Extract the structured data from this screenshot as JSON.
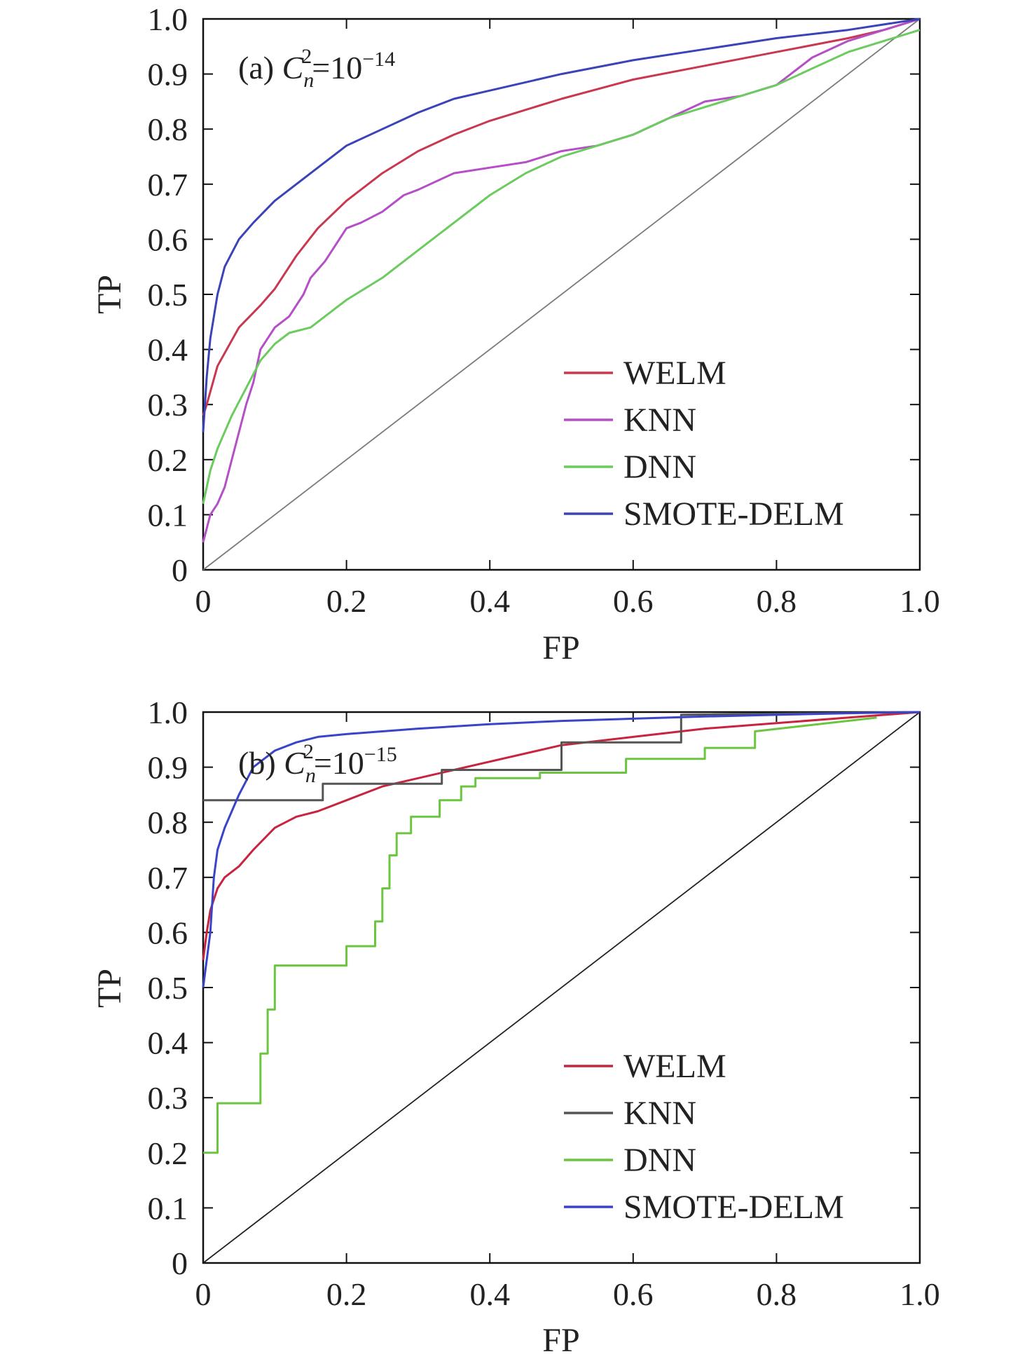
{
  "chart_data": [
    {
      "type": "line",
      "panel_label": {
        "prefix": "(a) ",
        "symbol": "C",
        "sub": "n",
        "sup": "2",
        "eq": "=10",
        "exp": "−14"
      },
      "xlabel": "FP",
      "ylabel": "TP",
      "xlim": [
        0,
        1
      ],
      "ylim": [
        0,
        1
      ],
      "xticks": [
        "0",
        "0.2",
        "0.4",
        "0.6",
        "0.8",
        "1.0"
      ],
      "yticks": [
        "0",
        "0.1",
        "0.2",
        "0.3",
        "0.4",
        "0.5",
        "0.6",
        "0.7",
        "0.8",
        "0.9",
        "1.0"
      ],
      "legend_position": "bottom-right",
      "reference_line": {
        "x": [
          0,
          1
        ],
        "y": [
          0,
          1
        ],
        "color": "#7a7a7a"
      },
      "series": [
        {
          "name": "WELM",
          "color": "#c8384f",
          "x": [
            0,
            0.005,
            0.02,
            0.05,
            0.08,
            0.1,
            0.13,
            0.16,
            0.2,
            0.25,
            0.3,
            0.35,
            0.4,
            0.5,
            0.6,
            0.7,
            0.8,
            0.9,
            0.95,
            1.0
          ],
          "y": [
            0.28,
            0.3,
            0.37,
            0.44,
            0.48,
            0.51,
            0.57,
            0.62,
            0.67,
            0.72,
            0.76,
            0.79,
            0.815,
            0.855,
            0.89,
            0.915,
            0.94,
            0.965,
            0.98,
            1.0
          ]
        },
        {
          "name": "KNN",
          "color": "#b44fc6",
          "x": [
            0,
            0.01,
            0.02,
            0.03,
            0.04,
            0.06,
            0.07,
            0.08,
            0.1,
            0.12,
            0.14,
            0.15,
            0.17,
            0.2,
            0.22,
            0.25,
            0.28,
            0.3,
            0.35,
            0.4,
            0.45,
            0.5,
            0.55,
            0.6,
            0.65,
            0.7,
            0.75,
            0.8,
            0.82,
            0.85,
            0.9,
            0.95,
            1.0
          ],
          "y": [
            0.05,
            0.1,
            0.12,
            0.15,
            0.2,
            0.3,
            0.34,
            0.4,
            0.44,
            0.46,
            0.5,
            0.53,
            0.56,
            0.62,
            0.63,
            0.65,
            0.68,
            0.69,
            0.72,
            0.73,
            0.74,
            0.76,
            0.77,
            0.79,
            0.82,
            0.85,
            0.86,
            0.88,
            0.9,
            0.93,
            0.96,
            0.98,
            1.0
          ]
        },
        {
          "name": "DNN",
          "color": "#6ccb5f",
          "x": [
            0,
            0.01,
            0.02,
            0.04,
            0.06,
            0.08,
            0.1,
            0.12,
            0.15,
            0.18,
            0.2,
            0.25,
            0.3,
            0.35,
            0.4,
            0.45,
            0.5,
            0.55,
            0.6,
            0.65,
            0.7,
            0.75,
            0.8,
            0.85,
            0.9,
            0.95,
            1.0
          ],
          "y": [
            0.12,
            0.18,
            0.22,
            0.28,
            0.33,
            0.38,
            0.41,
            0.43,
            0.44,
            0.47,
            0.49,
            0.53,
            0.58,
            0.63,
            0.68,
            0.72,
            0.75,
            0.77,
            0.79,
            0.82,
            0.84,
            0.86,
            0.88,
            0.91,
            0.94,
            0.96,
            0.98
          ]
        },
        {
          "name": "SMOTE-DELM",
          "color": "#3a44b8",
          "x": [
            0,
            0.005,
            0.01,
            0.02,
            0.03,
            0.05,
            0.07,
            0.1,
            0.13,
            0.16,
            0.2,
            0.25,
            0.3,
            0.35,
            0.4,
            0.5,
            0.6,
            0.7,
            0.8,
            0.9,
            1.0
          ],
          "y": [
            0.25,
            0.35,
            0.42,
            0.5,
            0.55,
            0.6,
            0.63,
            0.67,
            0.7,
            0.73,
            0.77,
            0.8,
            0.83,
            0.855,
            0.87,
            0.9,
            0.925,
            0.945,
            0.965,
            0.98,
            1.0
          ]
        }
      ]
    },
    {
      "type": "line",
      "panel_label": {
        "prefix": "(b) ",
        "symbol": "C",
        "sub": "n",
        "sup": "2",
        "eq": "=10",
        "exp": "−15"
      },
      "xlabel": "FP",
      "ylabel": "TP",
      "xlim": [
        0,
        1
      ],
      "ylim": [
        0,
        1
      ],
      "xticks": [
        "0",
        "0.2",
        "0.4",
        "0.6",
        "0.8",
        "1.0"
      ],
      "yticks": [
        "0",
        "0.1",
        "0.2",
        "0.3",
        "0.4",
        "0.5",
        "0.6",
        "0.7",
        "0.8",
        "0.9",
        "1.0"
      ],
      "legend_position": "bottom-right",
      "reference_line": {
        "x": [
          0,
          1
        ],
        "y": [
          0,
          1
        ],
        "color": "#222222"
      },
      "series": [
        {
          "name": "WELM",
          "color": "#c8243f",
          "x": [
            0,
            0.005,
            0.01,
            0.02,
            0.03,
            0.05,
            0.07,
            0.1,
            0.13,
            0.16,
            0.2,
            0.25,
            0.3,
            0.35,
            0.4,
            0.5,
            0.6,
            0.7,
            0.8,
            0.9,
            1.0
          ],
          "y": [
            0.55,
            0.6,
            0.64,
            0.68,
            0.7,
            0.72,
            0.75,
            0.79,
            0.81,
            0.82,
            0.84,
            0.865,
            0.88,
            0.895,
            0.91,
            0.94,
            0.955,
            0.97,
            0.98,
            0.99,
            1.0
          ]
        },
        {
          "name": "KNN",
          "color": "#555555",
          "x": [
            0,
            0.167,
            0.167,
            0.333,
            0.333,
            0.5,
            0.5,
            0.667,
            0.667,
            1.0
          ],
          "y": [
            0.84,
            0.84,
            0.87,
            0.87,
            0.895,
            0.895,
            0.945,
            0.945,
            0.995,
            1.0
          ]
        },
        {
          "name": "DNN",
          "color": "#6cc540",
          "x": [
            0,
            0.02,
            0.02,
            0.08,
            0.08,
            0.09,
            0.09,
            0.1,
            0.1,
            0.2,
            0.2,
            0.24,
            0.24,
            0.25,
            0.25,
            0.26,
            0.26,
            0.27,
            0.27,
            0.29,
            0.29,
            0.33,
            0.33,
            0.36,
            0.36,
            0.38,
            0.38,
            0.47,
            0.47,
            0.59,
            0.59,
            0.7,
            0.7,
            0.77,
            0.77,
            0.94
          ],
          "y": [
            0.2,
            0.2,
            0.29,
            0.29,
            0.38,
            0.38,
            0.46,
            0.46,
            0.54,
            0.54,
            0.575,
            0.575,
            0.62,
            0.62,
            0.68,
            0.68,
            0.74,
            0.74,
            0.78,
            0.78,
            0.81,
            0.81,
            0.84,
            0.84,
            0.865,
            0.865,
            0.88,
            0.88,
            0.89,
            0.89,
            0.915,
            0.915,
            0.935,
            0.935,
            0.965,
            0.99
          ]
        },
        {
          "name": "SMOTE-DELM",
          "color": "#3a44c8",
          "x": [
            0,
            0.005,
            0.01,
            0.015,
            0.02,
            0.03,
            0.04,
            0.05,
            0.07,
            0.1,
            0.13,
            0.16,
            0.2,
            0.3,
            0.4,
            0.5,
            0.6,
            0.7,
            0.8,
            0.9,
            1.0
          ],
          "y": [
            0.5,
            0.55,
            0.6,
            0.7,
            0.75,
            0.79,
            0.82,
            0.85,
            0.9,
            0.93,
            0.945,
            0.955,
            0.96,
            0.97,
            0.978,
            0.984,
            0.988,
            0.992,
            0.995,
            0.998,
            1.0
          ]
        }
      ]
    }
  ]
}
